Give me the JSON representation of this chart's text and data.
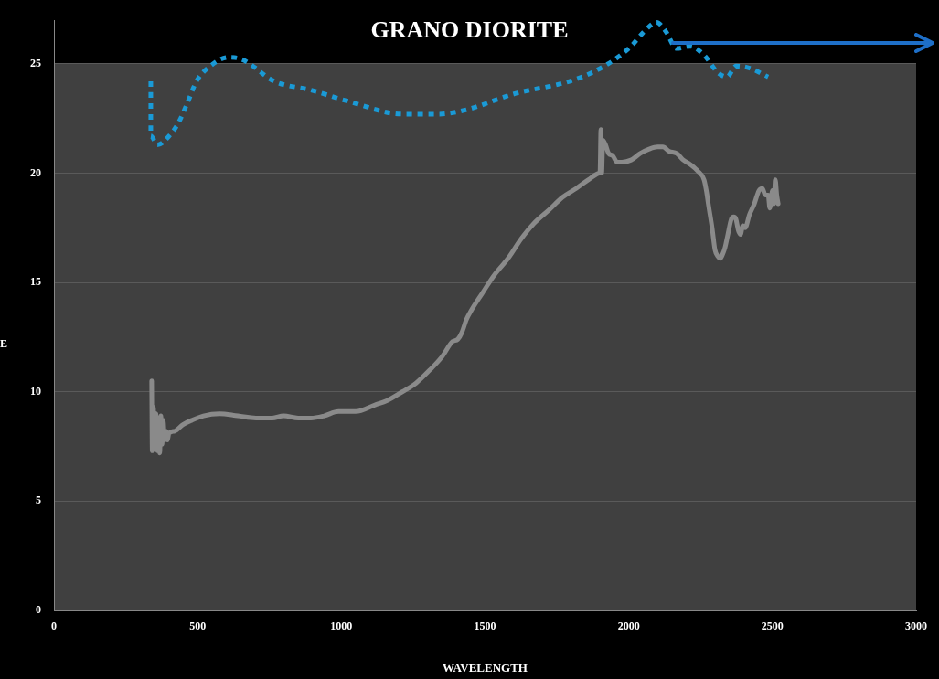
{
  "chart_data": {
    "type": "line",
    "title": "GRANO DIORITE",
    "xlabel": "WAVELENGTH",
    "ylabel": "E",
    "xlim": [
      0,
      3000
    ],
    "xticks": [
      0,
      500,
      1000,
      1500,
      2000,
      2500,
      3000
    ],
    "ylim": [
      0,
      27
    ],
    "yticks": [
      0,
      5,
      10,
      15,
      20,
      25
    ],
    "grid": "y",
    "legend": false,
    "marker": "none",
    "line_style": "solid",
    "series": [
      {
        "color": "#8a8a8a",
        "x": [
          340,
          342,
          346,
          350,
          355,
          360,
          364,
          368,
          372,
          376,
          380,
          385,
          390,
          395,
          400,
          420,
          449,
          480,
          520,
          576,
          640,
          703,
          760,
          799,
          850,
          894,
          940,
          990,
          1050,
          1117,
          1160,
          1212,
          1260,
          1308,
          1350,
          1387,
          1405,
          1419,
          1435,
          1451,
          1490,
          1530,
          1580,
          1626,
          1670,
          1721,
          1770,
          1817,
          1860,
          1896,
          1900,
          1903,
          1906,
          1910,
          1919,
          1930,
          1944,
          1960,
          1976,
          2008,
          2040,
          2071,
          2100,
          2119,
          2140,
          2167,
          2190,
          2214,
          2240,
          2262,
          2270,
          2278,
          2290,
          2300,
          2310,
          2319,
          2327,
          2335,
          2345,
          2357,
          2365,
          2373,
          2381,
          2389,
          2397,
          2405,
          2420,
          2437,
          2453,
          2465,
          2475,
          2485,
          2491,
          2500,
          2505,
          2510,
          2515,
          2520
        ],
        "values": [
          10.5,
          7.3,
          9.3,
          7.4,
          9.0,
          7.3,
          8.8,
          7.2,
          8.9,
          7.6,
          8.7,
          7.8,
          8.2,
          7.8,
          8.1,
          8.2,
          8.5,
          8.7,
          8.9,
          9.0,
          8.9,
          8.8,
          8.8,
          8.9,
          8.8,
          8.8,
          8.9,
          9.1,
          9.1,
          9.4,
          9.6,
          10.0,
          10.4,
          11.0,
          11.6,
          12.3,
          12.4,
          12.7,
          13.3,
          13.7,
          14.5,
          15.3,
          16.1,
          17.0,
          17.7,
          18.3,
          18.9,
          19.3,
          19.7,
          20.0,
          20.1,
          22.0,
          20.0,
          21.5,
          21.3,
          20.9,
          20.8,
          20.5,
          20.5,
          20.6,
          20.9,
          21.1,
          21.2,
          21.2,
          21.0,
          20.9,
          20.6,
          20.4,
          20.1,
          19.7,
          19.2,
          18.5,
          17.5,
          16.5,
          16.2,
          16.1,
          16.3,
          16.6,
          17.2,
          17.9,
          18.0,
          17.9,
          17.4,
          17.2,
          17.6,
          17.5,
          18.1,
          18.6,
          19.2,
          19.3,
          19.0,
          19.0,
          18.4,
          19.2,
          18.6,
          19.7,
          19.0,
          18.6
        ]
      },
      {
        "color": "#1a9ad6",
        "line_style": "dotted",
        "x": [
          337,
          337,
          360,
          401,
          433,
          464,
          496,
          544,
          608,
          655,
          767,
          894,
          1021,
          1212,
          1339,
          1435,
          1594,
          1817,
          1928,
          2008,
          2055,
          2097,
          2128,
          2167,
          2214,
          2262,
          2310,
          2342,
          2373,
          2421,
          2485
        ],
        "values": [
          24.2,
          21.7,
          21.3,
          21.7,
          22.3,
          23.2,
          24.2,
          24.9,
          25.3,
          25.2,
          24.2,
          23.8,
          23.3,
          22.7,
          22.7,
          22.9,
          23.6,
          24.3,
          25.0,
          25.8,
          26.5,
          26.9,
          26.5,
          25.7,
          25.8,
          25.4,
          24.6,
          24.4,
          24.9,
          24.8,
          24.4
        ]
      }
    ]
  }
}
